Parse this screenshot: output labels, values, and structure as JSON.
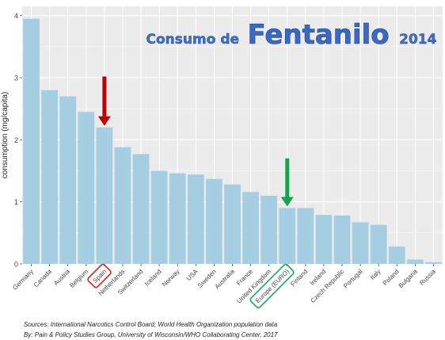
{
  "chart_data": {
    "type": "bar",
    "title": {
      "prefix": "Consumo de",
      "main": "Fentanilo",
      "year": "2014"
    },
    "ylabel": "consumption (mg/capita)",
    "xlabel": "",
    "ylim": [
      0,
      4.15
    ],
    "yticks": [
      0,
      1,
      2,
      3,
      4
    ],
    "grid": true,
    "categories": [
      "Germany",
      "Canada",
      "Austria",
      "Belgium",
      "Spain",
      "Netherlands",
      "Switzerland",
      "Iceland",
      "Norway",
      "USA",
      "Sweden",
      "Australia",
      "France",
      "United Kingdom",
      "Europe (EURO)",
      "Finland",
      "Ireland",
      "Czech Republic",
      "Portugal",
      "Italy",
      "Poland",
      "Bulgaria",
      "Russia"
    ],
    "values": [
      3.95,
      2.8,
      2.7,
      2.45,
      2.2,
      1.88,
      1.77,
      1.5,
      1.46,
      1.44,
      1.37,
      1.28,
      1.16,
      1.1,
      0.9,
      0.9,
      0.79,
      0.78,
      0.67,
      0.63,
      0.28,
      0.07,
      0.03
    ],
    "bar_color": "#a6cee3",
    "highlight_colors": {
      "Spain": "#e31a1c",
      "Europe (EURO)": "#19a95a"
    },
    "arrow_colors": {
      "Spain": "#c00000",
      "Europe (EURO)": "#16a34a"
    }
  },
  "footer": {
    "sources": "Sources: International Narcotics Control Board; World Health Organization population data",
    "by": "By: Pain & Policy Studies Group, University of Wisconsin/WHO Collaborating Center,  2017"
  }
}
